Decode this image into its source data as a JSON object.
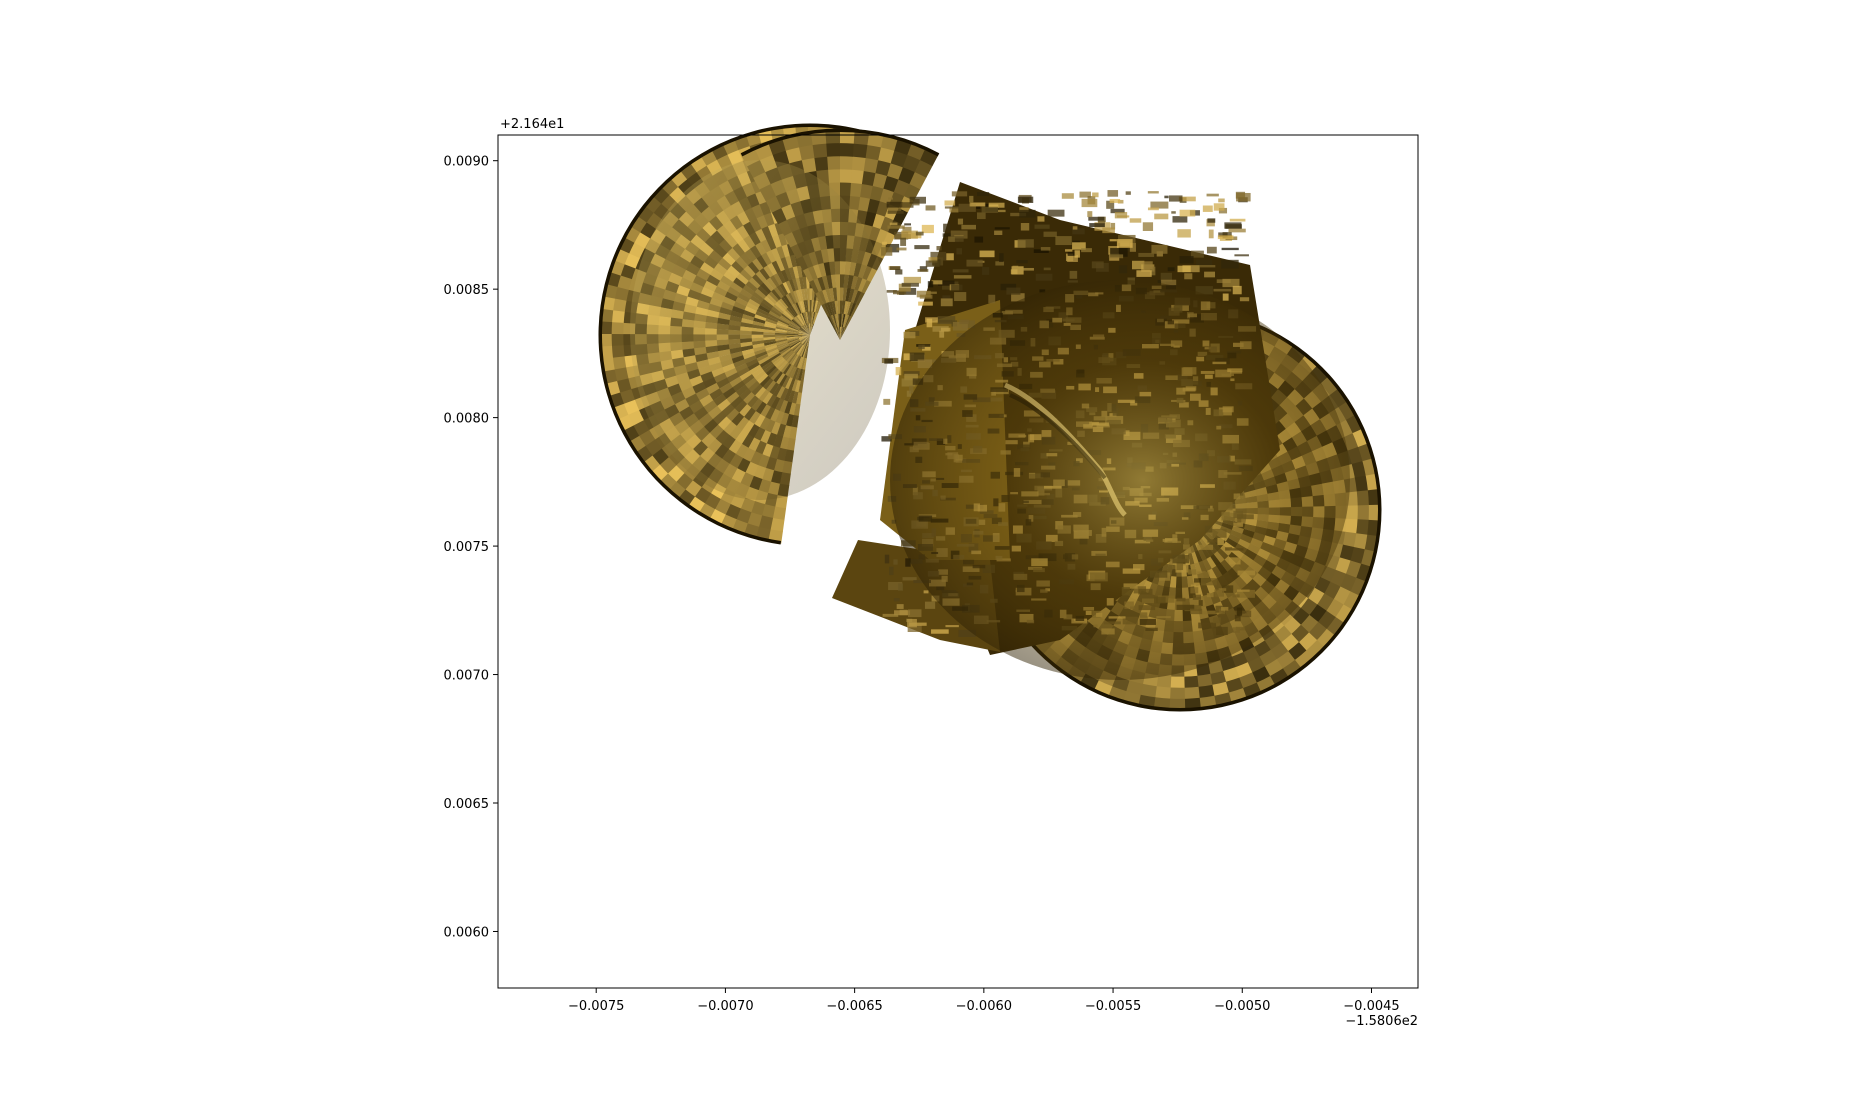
{
  "chart_data": {
    "type": "heatmap",
    "title": "",
    "xlabel": "",
    "ylabel": "",
    "xlim": [
      -0.00788,
      -0.00432
    ],
    "ylim": [
      0.00578,
      0.0091
    ],
    "x_offset_text": "−1.5806e2",
    "y_offset_text": "+2.164e1",
    "x_ticks": [
      {
        "value": -0.0075,
        "label": "−0.0075"
      },
      {
        "value": -0.007,
        "label": "−0.0070"
      },
      {
        "value": -0.0065,
        "label": "−0.0065"
      },
      {
        "value": -0.006,
        "label": "−0.0060"
      },
      {
        "value": -0.0055,
        "label": "−0.0055"
      },
      {
        "value": -0.005,
        "label": "−0.0050"
      },
      {
        "value": -0.0045,
        "label": "−0.0045"
      }
    ],
    "y_ticks": [
      {
        "value": 0.006,
        "label": "0.0060"
      },
      {
        "value": 0.0065,
        "label": "0.0065"
      },
      {
        "value": 0.007,
        "label": "0.0070"
      },
      {
        "value": 0.0075,
        "label": "0.0075"
      },
      {
        "value": 0.008,
        "label": "0.0080"
      },
      {
        "value": 0.0085,
        "label": "0.0085"
      },
      {
        "value": 0.009,
        "label": "0.0090"
      }
    ],
    "grid": false,
    "colormap": {
      "low": "#1e1400",
      "mid": "#8a6a12",
      "high": "#f2dc82"
    }
  }
}
